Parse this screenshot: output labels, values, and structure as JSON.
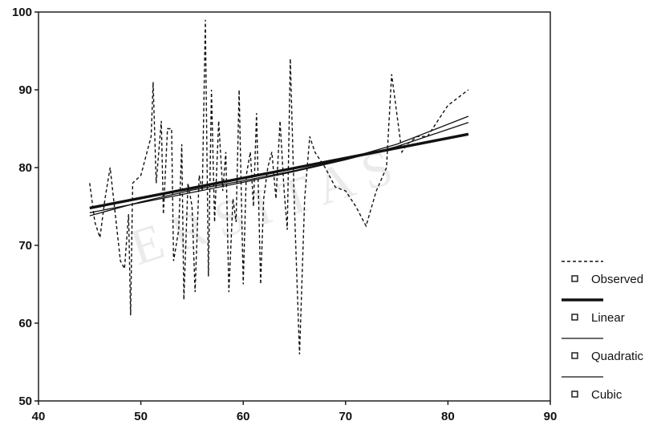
{
  "chart_data": {
    "type": "line",
    "title": "",
    "xlabel": "",
    "ylabel": "",
    "xlim": [
      40,
      90
    ],
    "ylim": [
      50,
      100
    ],
    "x_ticks": [
      40,
      50,
      60,
      70,
      80,
      90
    ],
    "y_ticks": [
      50,
      60,
      70,
      80,
      90,
      100
    ],
    "grid": false,
    "legend_position": "bottom-right",
    "series": [
      {
        "name": "Observed",
        "style": "dashed",
        "points": [
          [
            45,
            78
          ],
          [
            45.5,
            73
          ],
          [
            46,
            71
          ],
          [
            46.5,
            76
          ],
          [
            47,
            80
          ],
          [
            47.5,
            74
          ],
          [
            48,
            68
          ],
          [
            48.4,
            67
          ],
          [
            48.8,
            74
          ],
          [
            49,
            61
          ],
          [
            49.2,
            78
          ],
          [
            50,
            79
          ],
          [
            51,
            84
          ],
          [
            51.2,
            91
          ],
          [
            51.5,
            78
          ],
          [
            52,
            86
          ],
          [
            52.2,
            74
          ],
          [
            52.6,
            85
          ],
          [
            53,
            85
          ],
          [
            53.2,
            68
          ],
          [
            53.7,
            72
          ],
          [
            54,
            83
          ],
          [
            54.2,
            63
          ],
          [
            54.6,
            78
          ],
          [
            55,
            75
          ],
          [
            55.3,
            64
          ],
          [
            55.7,
            79
          ],
          [
            56,
            77
          ],
          [
            56.3,
            99
          ],
          [
            56.6,
            66
          ],
          [
            56.9,
            90
          ],
          [
            57.2,
            73
          ],
          [
            57.6,
            86
          ],
          [
            58,
            77
          ],
          [
            58.3,
            82
          ],
          [
            58.6,
            64
          ],
          [
            59,
            76
          ],
          [
            59.3,
            73
          ],
          [
            59.6,
            90
          ],
          [
            60,
            65
          ],
          [
            60.3,
            79
          ],
          [
            60.7,
            82
          ],
          [
            61,
            75
          ],
          [
            61.3,
            87
          ],
          [
            61.7,
            65
          ],
          [
            62,
            76
          ],
          [
            62.4,
            80
          ],
          [
            62.8,
            82
          ],
          [
            63.2,
            76
          ],
          [
            63.6,
            86
          ],
          [
            64,
            77
          ],
          [
            64.3,
            72
          ],
          [
            64.6,
            94
          ],
          [
            65,
            75
          ],
          [
            65.5,
            56
          ],
          [
            66,
            76
          ],
          [
            66.5,
            84
          ],
          [
            67,
            82
          ],
          [
            68,
            80
          ],
          [
            69,
            77.5
          ],
          [
            70,
            77
          ],
          [
            71,
            75
          ],
          [
            72,
            72.5
          ],
          [
            73,
            77
          ],
          [
            74,
            80
          ],
          [
            74.5,
            92
          ],
          [
            75,
            87
          ],
          [
            75.5,
            82
          ],
          [
            76,
            83
          ],
          [
            77,
            84
          ],
          [
            78,
            84
          ],
          [
            79,
            86
          ],
          [
            80,
            88
          ],
          [
            82,
            90
          ]
        ]
      },
      {
        "name": "Linear",
        "style": "thick",
        "x": [
          45,
          82
        ],
        "y": [
          74.8,
          84.3
        ]
      },
      {
        "name": "Quadratic",
        "style": "thin",
        "x": [
          45,
          50,
          55,
          60,
          65,
          70,
          75,
          82
        ],
        "y": [
          74.2,
          75.5,
          76.8,
          78.1,
          79.5,
          81.0,
          82.7,
          85.8
        ]
      },
      {
        "name": "Cubic",
        "style": "thin",
        "x": [
          45,
          50,
          55,
          60,
          65,
          70,
          75,
          82
        ],
        "y": [
          73.8,
          75.6,
          77.1,
          78.3,
          79.6,
          81.1,
          83.0,
          86.6
        ]
      }
    ]
  },
  "watermark": "ERSITAS"
}
